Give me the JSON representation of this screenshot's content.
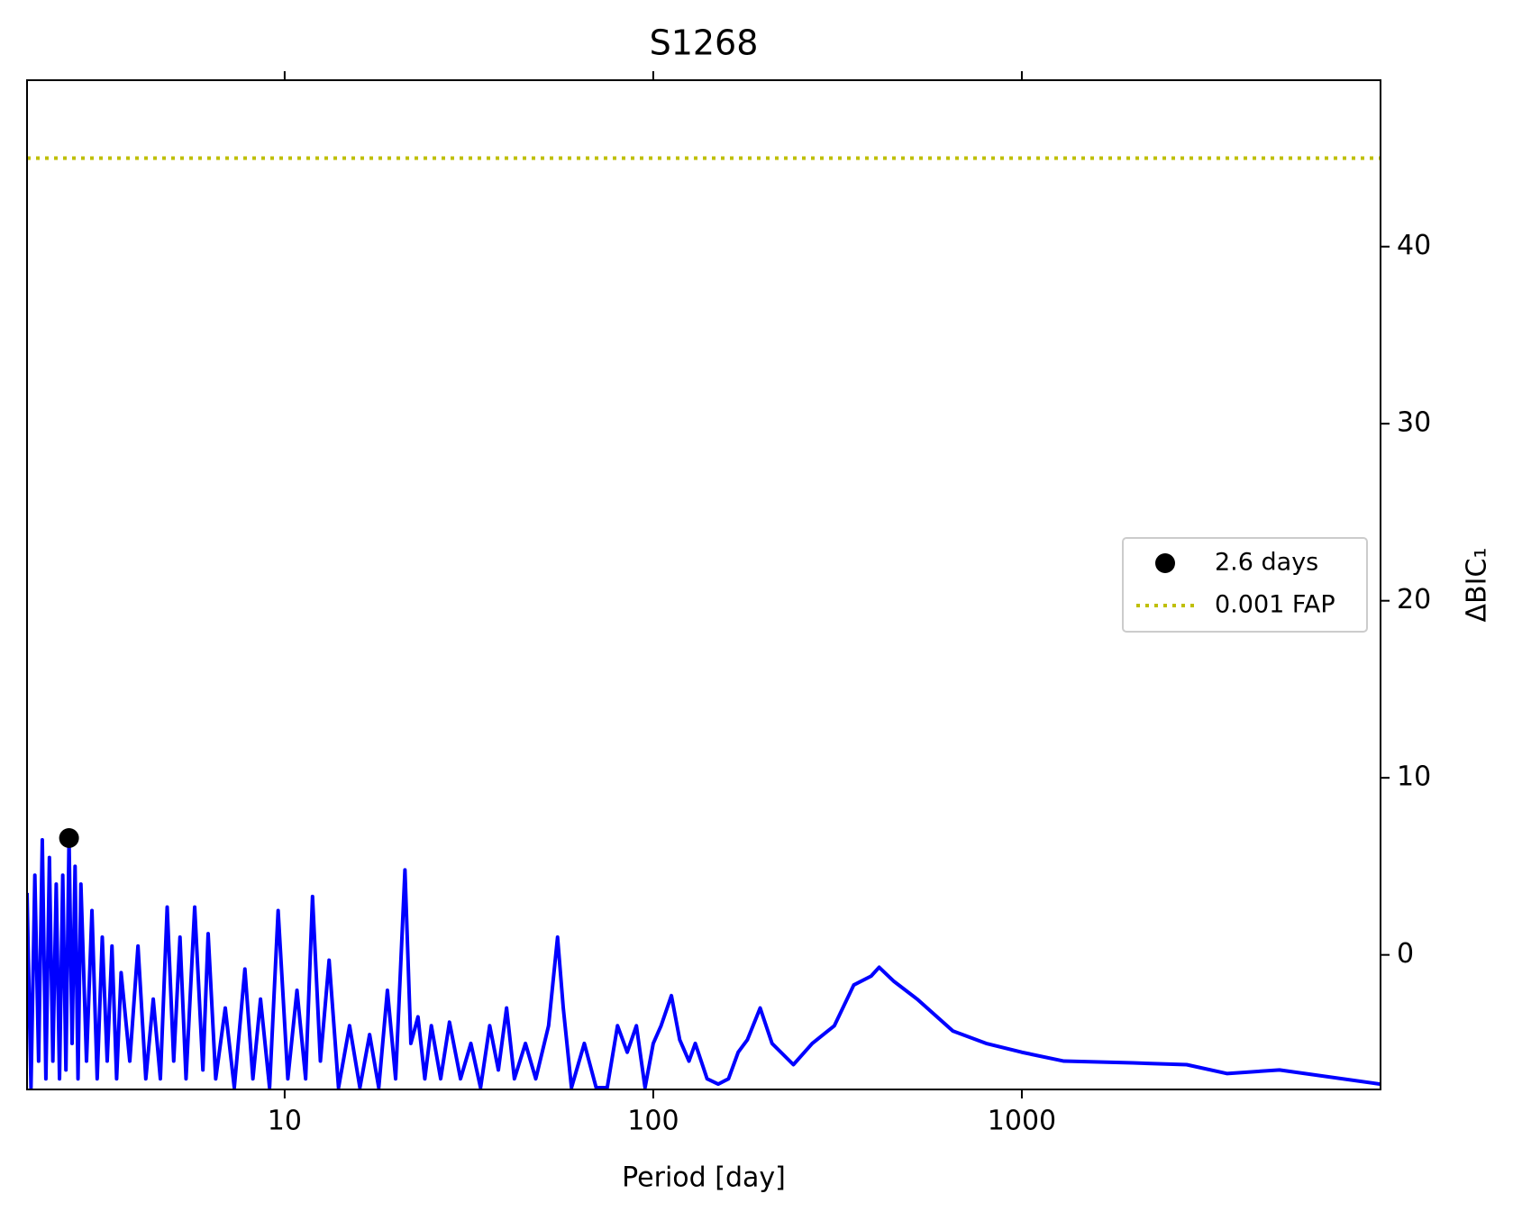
{
  "chart_data": {
    "type": "line",
    "title": "S1268",
    "xlabel": "Period [day]",
    "ylabel": "ΔBIC₁",
    "xscale": "log",
    "xlim": [
      2,
      9400
    ],
    "xticks": [
      10,
      100,
      1000
    ],
    "ylim": [
      -7.6,
      49.4
    ],
    "yticks": [
      0,
      10,
      20,
      30,
      40
    ],
    "yaxis_side": "right",
    "legend": "center right",
    "series": [
      {
        "color": "#0000ff",
        "x": [
          2.0,
          2.05,
          2.1,
          2.15,
          2.2,
          2.25,
          2.3,
          2.35,
          2.4,
          2.45,
          2.5,
          2.55,
          2.6,
          2.65,
          2.7,
          2.75,
          2.8,
          2.9,
          3.0,
          3.1,
          3.2,
          3.3,
          3.4,
          3.5,
          3.6,
          3.8,
          4.0,
          4.2,
          4.4,
          4.6,
          4.8,
          5.0,
          5.2,
          5.4,
          5.7,
          6.0,
          6.2,
          6.5,
          6.9,
          7.3,
          7.8,
          8.2,
          8.6,
          9.1,
          9.6,
          10.2,
          10.8,
          11.4,
          11.9,
          12.5,
          13.2,
          14,
          15,
          16,
          17,
          18,
          19,
          20,
          21.2,
          22,
          23,
          24,
          25,
          26.5,
          28,
          30,
          32,
          34,
          36,
          38,
          40,
          42,
          45,
          48,
          52,
          55,
          57,
          60,
          65,
          70,
          75,
          80,
          85,
          90,
          95,
          100,
          105,
          112,
          118,
          125,
          130,
          140,
          150,
          160,
          170,
          180,
          195,
          210,
          240,
          270,
          310,
          350,
          390,
          410,
          450,
          520,
          650,
          800,
          1000,
          1300,
          2000,
          2800,
          3600,
          5000,
          9400
        ],
        "values": [
          3.5,
          -7.5,
          4.5,
          -6,
          6.5,
          -7,
          5.5,
          -6,
          4,
          -7,
          4.5,
          -6.5,
          6.6,
          -5,
          5,
          -7,
          4,
          -6,
          2.5,
          -7,
          1,
          -6,
          0.5,
          -7,
          -1,
          -6,
          0.5,
          -7,
          -2.5,
          -7,
          2.7,
          -6,
          1,
          -7,
          2.7,
          -6.5,
          1.2,
          -7,
          -3,
          -7.5,
          -0.8,
          -7,
          -2.5,
          -7.5,
          2.5,
          -7,
          -2,
          -7,
          3.3,
          -6,
          -0.3,
          -7.5,
          -4,
          -7.5,
          -4.5,
          -7.5,
          -2,
          -7,
          4.8,
          -5,
          -3.5,
          -7,
          -4,
          -7,
          -3.8,
          -7,
          -5,
          -7.5,
          -4,
          -6.5,
          -3,
          -7,
          -5,
          -7,
          -4,
          1,
          -3,
          -7.5,
          -5,
          -7.5,
          -7.5,
          -4,
          -5.5,
          -4,
          -7.5,
          -5,
          -4,
          -2.3,
          -4.8,
          -6,
          -5,
          -7,
          -7.3,
          -7,
          -5.5,
          -4.8,
          -3,
          -5,
          -6.2,
          -5,
          -4,
          -1.7,
          -1.2,
          -0.7,
          -1.5,
          -2.5,
          -4.3,
          -5,
          -5.5,
          -6,
          -6.1,
          -6.2,
          -6.7,
          -6.5,
          -7.3
        ]
      }
    ],
    "points": [
      {
        "name": "2.6 days",
        "x": 2.6,
        "y": 6.6,
        "color": "#000000"
      }
    ],
    "hlines": [
      {
        "name": "0.001 FAP",
        "y": 45,
        "color": "#bfbf00",
        "style": "dotted"
      }
    ]
  }
}
